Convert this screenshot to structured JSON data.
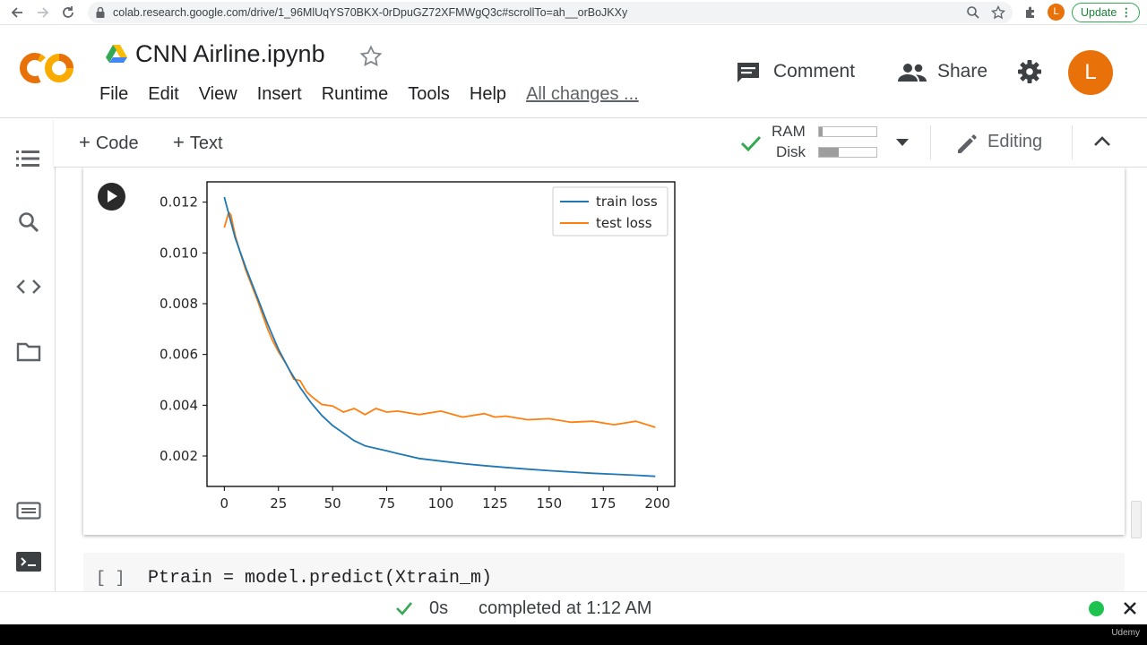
{
  "browser": {
    "url": "colab.research.google.com/drive/1_96MlUqYS70BKX-0rDpuGZ72XFMWgQ3c#scrollTo=ah__orBoJKXy",
    "profile_initial": "L",
    "update_label": "Update"
  },
  "header": {
    "logo_text": "CO",
    "notebook_title": "CNN Airline.ipynb",
    "menu": [
      "File",
      "Edit",
      "View",
      "Insert",
      "Runtime",
      "Tools",
      "Help"
    ],
    "all_changes": "All changes ...",
    "comment_label": "Comment",
    "share_label": "Share",
    "avatar_initial": "L"
  },
  "toolbar": {
    "add_code": "Code",
    "add_text": "Text",
    "ram_label": "RAM",
    "disk_label": "Disk",
    "ram_usage": 0.06,
    "disk_usage": 0.35,
    "editing_label": "Editing"
  },
  "cells": {
    "next_cell_bracket": "[ ]",
    "next_cell_code": "Ptrain = model.predict(Xtrain_m)"
  },
  "status": {
    "duration": "0s",
    "message": "completed at 1:12 AM"
  },
  "watermark": "Udemy",
  "colors": {
    "train": "#1f77b4",
    "test": "#ff7f0e",
    "accent": "#e8710a",
    "green": "#34a853"
  },
  "chart_data": {
    "type": "line",
    "x_ticks": [
      0,
      25,
      50,
      75,
      100,
      125,
      150,
      175,
      200
    ],
    "y_ticks": [
      0.002,
      0.004,
      0.006,
      0.008,
      0.01,
      0.012
    ],
    "y_tick_labels": [
      "0.002",
      "0.004",
      "0.006",
      "0.008",
      "0.010",
      "0.012"
    ],
    "xlim": [
      -8,
      208
    ],
    "ylim": [
      0.0008,
      0.0128
    ],
    "legend": "top-right",
    "grid": false,
    "series": [
      {
        "name": "train loss",
        "x": [
          0,
          5,
          10,
          15,
          20,
          25,
          30,
          35,
          40,
          45,
          50,
          55,
          60,
          65,
          70,
          75,
          80,
          90,
          100,
          110,
          120,
          130,
          140,
          150,
          160,
          170,
          180,
          190,
          199
        ],
        "y": [
          0.0122,
          0.0106,
          0.0094,
          0.0083,
          0.0072,
          0.0062,
          0.0054,
          0.0047,
          0.0041,
          0.0036,
          0.0032,
          0.0029,
          0.0026,
          0.0024,
          0.0023,
          0.0022,
          0.0021,
          0.0019,
          0.0018,
          0.0017,
          0.00162,
          0.00155,
          0.00148,
          0.00142,
          0.00137,
          0.00132,
          0.00128,
          0.00124,
          0.0012
        ]
      },
      {
        "name": "test loss",
        "x": [
          0,
          1,
          2,
          3,
          4,
          5,
          7,
          10,
          15,
          20,
          22,
          25,
          28,
          30,
          32,
          35,
          38,
          40,
          45,
          50,
          55,
          60,
          65,
          70,
          75,
          80,
          90,
          100,
          110,
          120,
          125,
          130,
          140,
          150,
          160,
          170,
          180,
          190,
          199
        ],
        "y": [
          0.011,
          0.0113,
          0.0116,
          0.0115,
          0.0111,
          0.0107,
          0.0101,
          0.0093,
          0.0082,
          0.007,
          0.0066,
          0.0061,
          0.0057,
          0.0054,
          0.0051,
          0.0049,
          0.0046,
          0.0043,
          0.0041,
          0.0039,
          0.0038,
          0.0038,
          0.0037,
          0.0038,
          0.0038,
          0.0037,
          0.0037,
          0.0037,
          0.0036,
          0.0036,
          0.0036,
          0.0035,
          0.0035,
          0.0034,
          0.0034,
          0.0033,
          0.0033,
          0.0033,
          0.0032
        ]
      }
    ]
  }
}
